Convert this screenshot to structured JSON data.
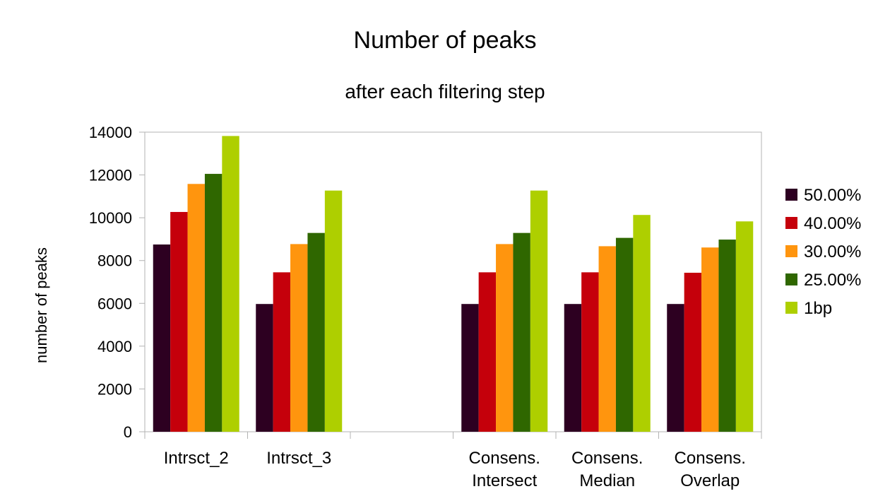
{
  "chart_data": {
    "type": "bar",
    "title": "Number of peaks",
    "subtitle": "after each filtering step",
    "xlabel": "",
    "ylabel": "number of peaks",
    "ylim": [
      0,
      14000
    ],
    "yticks": [
      "0",
      "2000",
      "4000",
      "6000",
      "8000",
      "10000",
      "12000",
      "14000"
    ],
    "grid": false,
    "legend_position": "right",
    "categories": [
      [
        "Intrsct_2"
      ],
      [
        "Intrsct_3"
      ],
      [],
      [
        "Consens.",
        "Intersect"
      ],
      [
        "Consens.",
        "Median"
      ],
      [
        "Consens.",
        "Overlap"
      ]
    ],
    "series": [
      {
        "name": "50.00%",
        "color": "#2d0021",
        "values": [
          8750,
          5970,
          null,
          5970,
          5970,
          5970
        ]
      },
      {
        "name": "40.00%",
        "color": "#c5000b",
        "values": [
          10270,
          7450,
          null,
          7450,
          7450,
          7430
        ]
      },
      {
        "name": "30.00%",
        "color": "#ff950e",
        "values": [
          11580,
          8770,
          null,
          8770,
          8670,
          8610
        ]
      },
      {
        "name": "25.00%",
        "color": "#2f6700",
        "values": [
          12050,
          9290,
          null,
          9290,
          9060,
          8980
        ]
      },
      {
        "name": "1bp",
        "color": "#aecf00",
        "values": [
          13820,
          11270,
          null,
          11270,
          10130,
          9830
        ]
      }
    ]
  }
}
